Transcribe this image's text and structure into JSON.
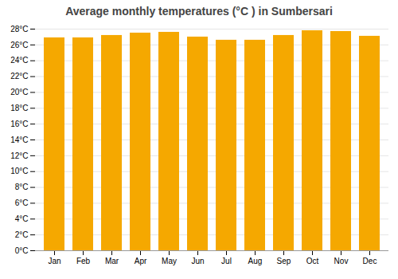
{
  "chart_data": {
    "type": "bar",
    "title": "Average monthly temperatures (°C ) in Sumbersari",
    "categories": [
      "Jan",
      "Feb",
      "Mar",
      "Apr",
      "May",
      "Jun",
      "Jul",
      "Aug",
      "Sep",
      "Oct",
      "Nov",
      "Dec"
    ],
    "values": [
      26.9,
      26.9,
      27.2,
      27.5,
      27.6,
      27.0,
      26.6,
      26.6,
      27.2,
      27.8,
      27.7,
      27.1
    ],
    "color": "#F5A800",
    "ylim": [
      0,
      28
    ],
    "yticks": [
      {
        "value": 0,
        "label": "0°C"
      },
      {
        "value": 2,
        "label": "2°C"
      },
      {
        "value": 4,
        "label": "4°C"
      },
      {
        "value": 6,
        "label": "6°C"
      },
      {
        "value": 8,
        "label": "8°C"
      },
      {
        "value": 10,
        "label": "10°C"
      },
      {
        "value": 12,
        "label": "12°C"
      },
      {
        "value": 14,
        "label": "14°C"
      },
      {
        "value": 16,
        "label": "16°C"
      },
      {
        "value": 18,
        "label": "18°C"
      },
      {
        "value": 20,
        "label": "20°C"
      },
      {
        "value": 22,
        "label": "22°C"
      },
      {
        "value": 24,
        "label": "24°C"
      },
      {
        "value": 26,
        "label": "26°C"
      },
      {
        "value": 28,
        "label": "28°C"
      }
    ],
    "grid": true
  }
}
